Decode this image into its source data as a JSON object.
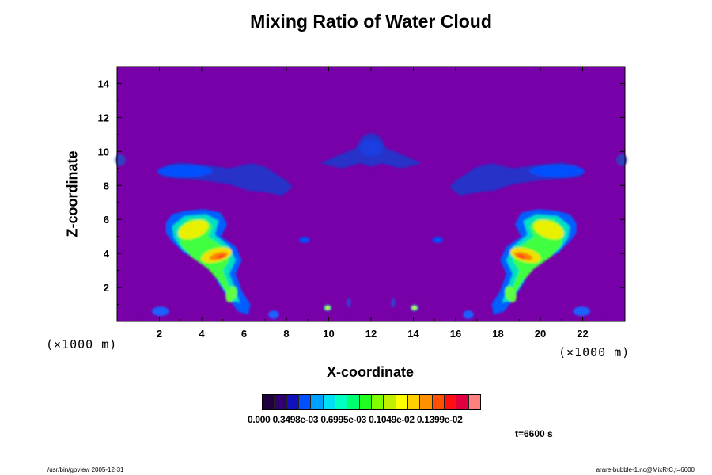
{
  "chart_data": {
    "type": "heatmap",
    "title": "Mixing Ratio of Water Cloud",
    "xlabel": "X-coordinate",
    "ylabel": "Z-coordinate",
    "x_unit": "(×1000 m)",
    "y_unit": "(×1000 m)",
    "xlim": [
      0,
      24
    ],
    "ylim": [
      0,
      15
    ],
    "x_ticks": [
      "2",
      "4",
      "6",
      "8",
      "10",
      "12",
      "14",
      "16",
      "18",
      "20",
      "22"
    ],
    "y_ticks": [
      "2",
      "4",
      "6",
      "8",
      "10",
      "12",
      "14"
    ],
    "background_value": 0,
    "colorbar": {
      "labels": "0.000 0.3498e-03 0.6995e-03 0.1049e-02 0.1399e-02",
      "colors": [
        "#200040",
        "#300070",
        "#1010c0",
        "#0050ff",
        "#00a0ff",
        "#00e0f0",
        "#00ffc0",
        "#00ff70",
        "#20ff20",
        "#80ff00",
        "#c0f000",
        "#ffff00",
        "#ffd000",
        "#ff9000",
        "#ff5000",
        "#ff1010",
        "#e00040",
        "#ff8080"
      ]
    },
    "features": [
      {
        "name": "upper-cloud-left",
        "x": 4.5,
        "z": 8.9,
        "value": 0.00012
      },
      {
        "name": "upper-cloud-center",
        "x": 12.0,
        "z": 9.9,
        "value": 0.0001
      },
      {
        "name": "upper-cloud-right",
        "x": 19.5,
        "z": 8.9,
        "value": 0.00012
      },
      {
        "name": "plume-left-top",
        "x": 3.7,
        "z": 5.5,
        "value": 0.0011
      },
      {
        "name": "plume-left-core",
        "x": 4.8,
        "z": 3.8,
        "value": 0.00125
      },
      {
        "name": "plume-right-top",
        "x": 20.3,
        "z": 5.5,
        "value": 0.0011
      },
      {
        "name": "plume-right-core",
        "x": 19.2,
        "z": 3.8,
        "value": 0.00125
      }
    ]
  },
  "time_label": "t=6600 s",
  "footer_left": "/usr/bin/gpview 2005-12-31",
  "footer_right": "arare-bubble-1.nc@MixRtC,t=6600"
}
